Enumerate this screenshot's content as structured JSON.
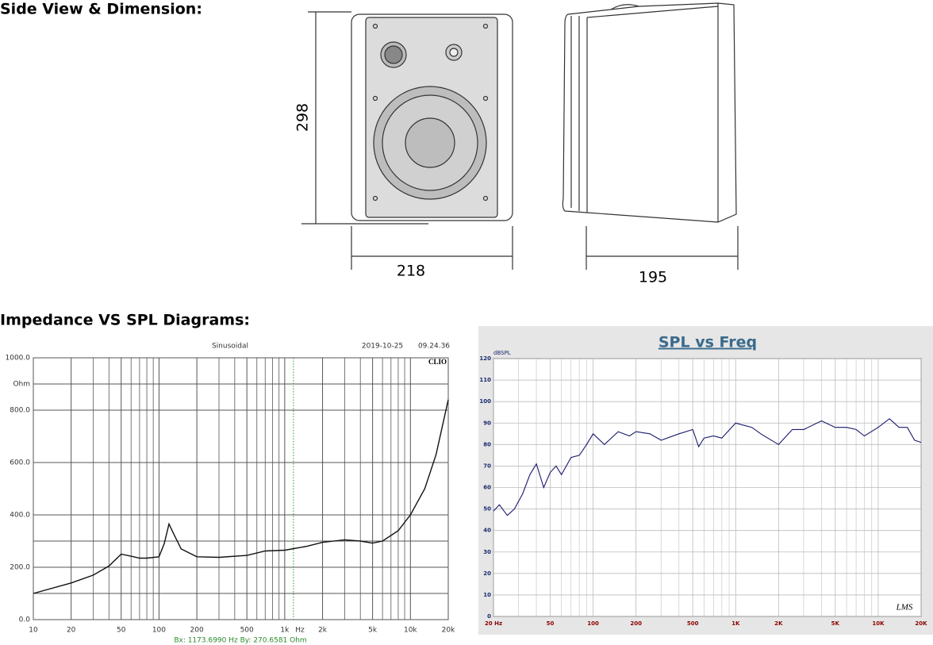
{
  "headings": [
    "Side View & Dimension:",
    "Impedance VS SPL Diagrams:"
  ],
  "dimensions": {
    "height": "298",
    "width": "218",
    "depth": "195"
  },
  "chart_data": [
    {
      "type": "line",
      "subtitle": "Sinusoidal",
      "date": "2019-10-25",
      "time": "09.24.36",
      "brand": "CLIO",
      "y_unit": "Ohm",
      "x_unit": "Hz",
      "xscale": "log",
      "color": "#111111",
      "cursor": {
        "x": 1173.699,
        "label": "Bx: 1173.6990 Hz   By: 270.6581 Ohm"
      },
      "x": [
        10,
        20,
        30,
        40,
        50,
        60,
        70,
        80,
        100,
        110,
        120,
        130,
        150,
        200,
        300,
        500,
        700,
        1000,
        1500,
        2000,
        3000,
        4000,
        5000,
        6000,
        8000,
        10000,
        13000,
        16000,
        20000
      ],
      "values": [
        100,
        140,
        170,
        205,
        250,
        242,
        235,
        235,
        240,
        290,
        365,
        330,
        270,
        240,
        238,
        245,
        262,
        265,
        280,
        295,
        305,
        300,
        292,
        300,
        340,
        400,
        500,
        630,
        840
      ],
      "xlim": [
        10,
        20000
      ],
      "xticks": [
        10,
        20,
        50,
        100,
        200,
        500,
        {
          "value": 1000,
          "label": "1k"
        },
        {
          "value": 2000,
          "label": "2k"
        },
        {
          "value": 5000,
          "label": "5k"
        },
        {
          "value": 10000,
          "label": "10k"
        },
        {
          "value": 20000,
          "label": "20k"
        }
      ],
      "xminor": [
        30,
        40,
        60,
        70,
        80,
        90,
        300,
        400,
        600,
        700,
        800,
        900,
        3000,
        4000,
        6000,
        7000,
        8000,
        9000
      ],
      "ylim": [
        0,
        1000
      ],
      "yticks": [
        {
          "value": 0,
          "label": "0.0"
        },
        {
          "value": 200,
          "label": "200.0"
        },
        {
          "value": 400,
          "label": "400.0"
        },
        {
          "value": 600,
          "label": "600.0"
        },
        {
          "value": 800,
          "label": "800.0"
        },
        {
          "value": 1000,
          "label": "1000.0"
        }
      ],
      "yminor": [
        100,
        300,
        900
      ]
    },
    {
      "type": "line",
      "title": "SPL vs Freq",
      "y_unit": "dBSPL",
      "watermark": "LMS",
      "xscale": "log",
      "color": "#1a1a6e",
      "x": [
        20,
        22,
        25,
        28,
        32,
        36,
        40,
        45,
        50,
        55,
        60,
        70,
        80,
        90,
        100,
        120,
        150,
        180,
        200,
        250,
        300,
        400,
        500,
        550,
        600,
        700,
        800,
        1000,
        1300,
        1500,
        2000,
        2500,
        3000,
        4000,
        5000,
        6000,
        7000,
        8000,
        10000,
        12000,
        14000,
        16000,
        18000,
        20000
      ],
      "values": [
        49,
        52,
        47,
        50,
        57,
        66,
        71,
        60,
        67,
        70,
        66,
        74,
        75,
        80,
        85,
        80,
        86,
        84,
        86,
        85,
        82,
        85,
        87,
        79,
        83,
        84,
        83,
        90,
        88,
        85,
        80,
        87,
        87,
        91,
        88,
        88,
        87,
        84,
        88,
        92,
        88,
        88,
        82,
        81
      ],
      "xlim": [
        20,
        20000
      ],
      "xticks": [
        {
          "value": 20,
          "label": "20 Hz"
        },
        50,
        100,
        200,
        500,
        {
          "value": 1000,
          "label": "1K"
        },
        {
          "value": 2000,
          "label": "2K"
        },
        {
          "value": 5000,
          "label": "5K"
        },
        {
          "value": 10000,
          "label": "10K"
        },
        {
          "value": 20000,
          "label": "20K"
        }
      ],
      "xminor": [
        30,
        40,
        60,
        70,
        80,
        90,
        300,
        400,
        600,
        700,
        800,
        900,
        3000,
        4000,
        6000,
        7000,
        8000,
        9000
      ],
      "ylim": [
        0,
        120
      ],
      "yticks": [
        0,
        10,
        20,
        30,
        40,
        50,
        60,
        70,
        80,
        90,
        100,
        110,
        120
      ]
    }
  ]
}
